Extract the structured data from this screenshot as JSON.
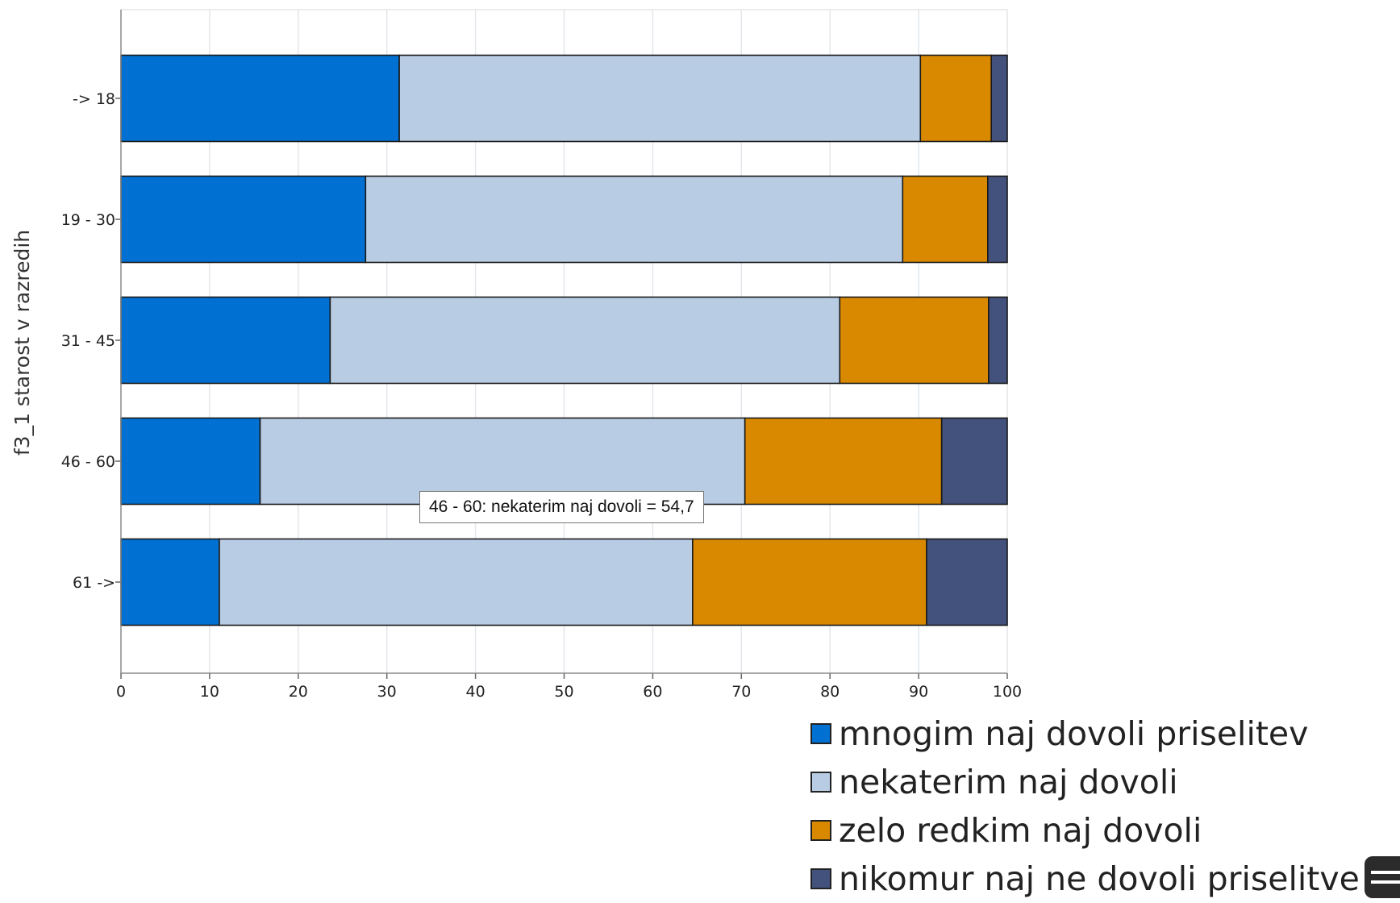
{
  "chart_data": {
    "type": "bar",
    "orientation": "horizontal",
    "stacked": true,
    "categories": [
      "-> 18",
      "19 - 30",
      "31 - 45",
      "46 - 60",
      "61 ->"
    ],
    "series": [
      {
        "name": "mnogim naj dovoli priselitev",
        "color": "#0070d2",
        "values": [
          31.4,
          27.6,
          23.6,
          15.7,
          11.1
        ]
      },
      {
        "name": "nekaterim naj dovoli",
        "color": "#b8cce4",
        "values": [
          58.8,
          60.6,
          57.5,
          54.7,
          53.4
        ]
      },
      {
        "name": "zelo redkim naj dovoli",
        "color": "#d98900",
        "values": [
          8.0,
          9.6,
          16.8,
          22.2,
          26.4
        ]
      },
      {
        "name": "nikomur naj ne dovoli priselitve",
        "color": "#43527d",
        "values": [
          1.8,
          2.2,
          2.1,
          7.4,
          9.1
        ]
      }
    ],
    "xlim": [
      0,
      100
    ],
    "xticks": [
      "0",
      "10",
      "20",
      "30",
      "40",
      "50",
      "60",
      "70",
      "80",
      "90",
      "100"
    ],
    "ylabel": "f3_1 starost v razredih",
    "xlabel": "",
    "grid": true,
    "legend_position": "bottom-right"
  },
  "tooltip": {
    "text": "46 - 60: nekaterim naj dovoli = 54,7"
  },
  "corner_icon": "menu-icon"
}
